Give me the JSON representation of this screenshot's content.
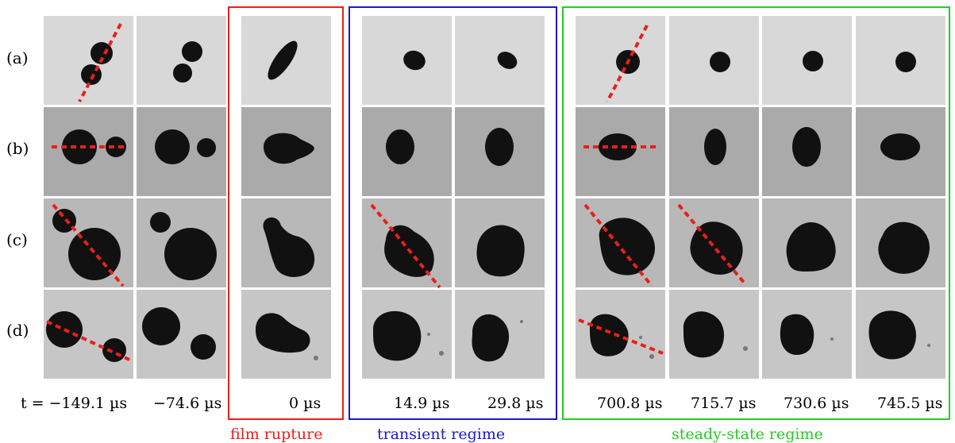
{
  "rows": [
    {
      "label": "(a)",
      "kind": "a"
    },
    {
      "label": "(b)",
      "kind": "b"
    },
    {
      "label": "(c)",
      "kind": "c"
    },
    {
      "label": "(d)",
      "kind": "d"
    }
  ],
  "columns": [
    {
      "time": "t = −149.1 µs",
      "stage": "before"
    },
    {
      "time": "−74.6 µs",
      "stage": "before"
    },
    {
      "time": "0 µs",
      "stage": "rupture"
    },
    {
      "time": "14.9 µs",
      "stage": "transient"
    },
    {
      "time": "29.8 µs",
      "stage": "transient"
    },
    {
      "time": "700.8 µs",
      "stage": "steady"
    },
    {
      "time": "715.7 µs",
      "stage": "steady"
    },
    {
      "time": "730.6 µs",
      "stage": "steady"
    },
    {
      "time": "745.5 µs",
      "stage": "steady"
    }
  ],
  "groups": {
    "rupture": {
      "label": "film rupture",
      "color": "#e8201a"
    },
    "transient": {
      "label": "transient regime",
      "color": "#1a1acc"
    },
    "steady": {
      "label": "steady-state regime",
      "color": "#22cc22"
    }
  },
  "marker_color": "#e8201a"
}
